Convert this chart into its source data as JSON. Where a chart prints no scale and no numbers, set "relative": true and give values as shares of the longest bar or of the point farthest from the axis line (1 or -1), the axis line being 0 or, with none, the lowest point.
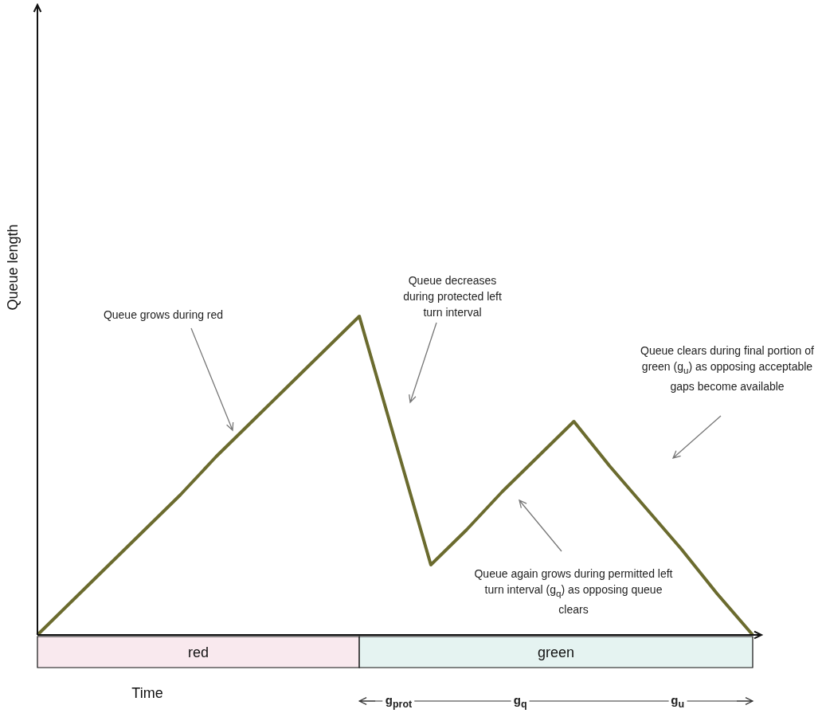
{
  "chart_data": {
    "type": "line",
    "xlabel": "Time",
    "ylabel": "Queue length",
    "relative": true,
    "categories": [
      null,
      null,
      null,
      null,
      null,
      null,
      null,
      null,
      null,
      null,
      null,
      null,
      null,
      null,
      null,
      null,
      null,
      null,
      null,
      null,
      null
    ],
    "series": [
      {
        "color": "#6b6b2e",
        "values": [
          0,
          0.11,
          0.22,
          0.33,
          0.44,
          0.56,
          0.67,
          0.78,
          0.89,
          1,
          0.61,
          0.22,
          0.33,
          0.45,
          0.56,
          0.67,
          0.53,
          0.4,
          0.27,
          0.13,
          0
        ]
      }
    ],
    "annotations": [
      "Queue grows during red",
      "Queue decreases during protected left turn interval",
      "Queue clears during final portion of green (g$_{u}$) as opposing acceptable gaps become available",
      "Queue again grows during permitted left turn interval (g$_{q}$) as opposing queue clears",
      "red",
      "green",
      "g$_{prot}$",
      "g$_{q}$",
      "g$_{u}$"
    ]
  }
}
